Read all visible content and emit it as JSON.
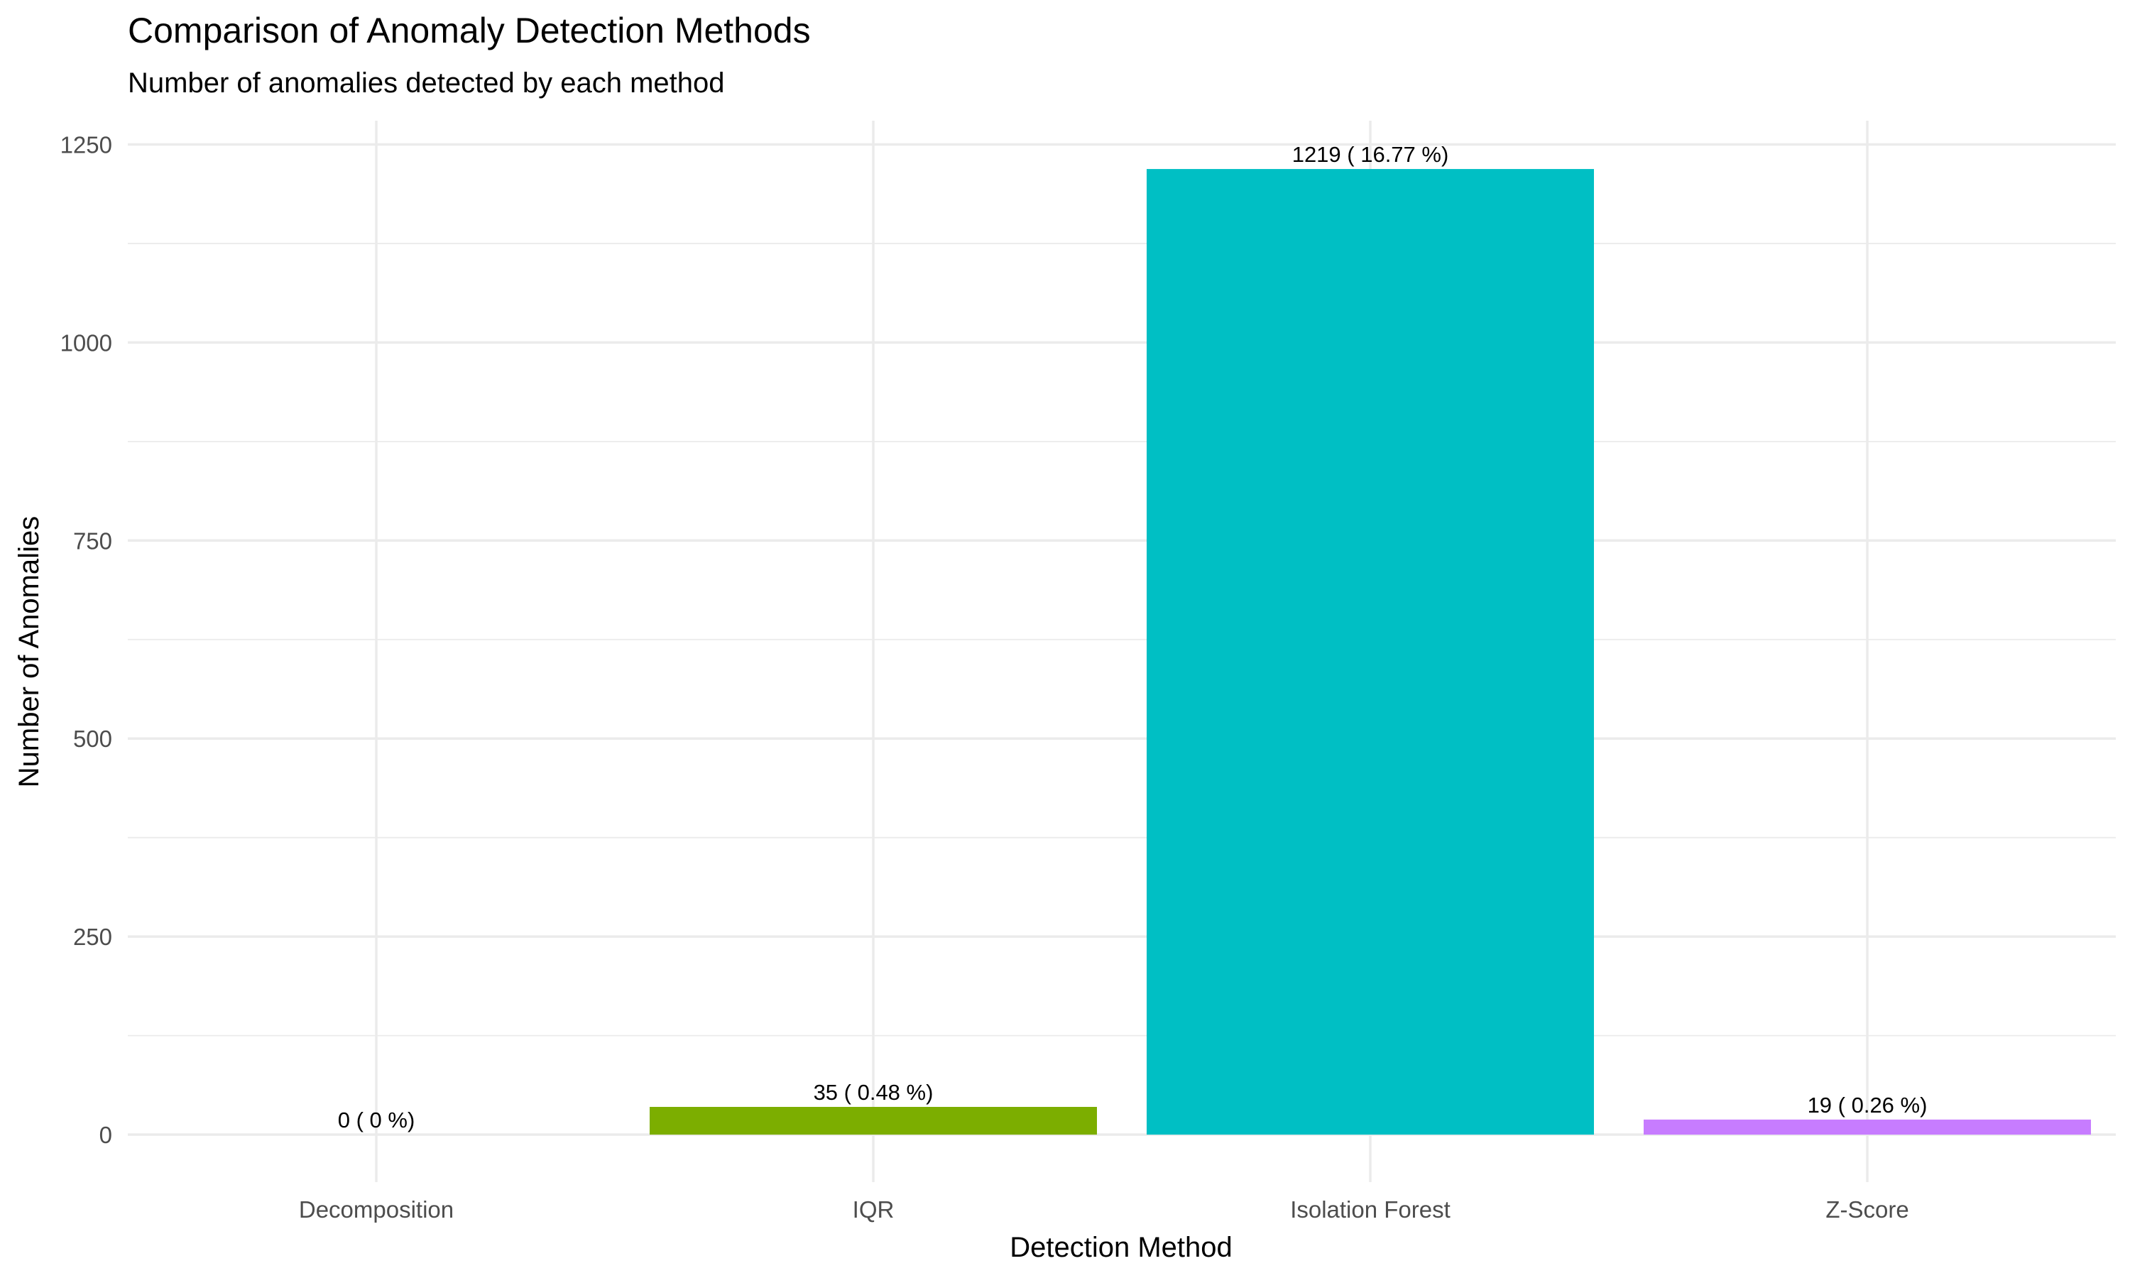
{
  "chart_data": {
    "type": "bar",
    "title": "Comparison of Anomaly Detection Methods",
    "subtitle": "Number of anomalies detected by each method",
    "xlabel": "Detection Method",
    "ylabel": "Number of Anomalies",
    "categories": [
      "Decomposition",
      "IQR",
      "Isolation Forest",
      "Z-Score"
    ],
    "values": [
      0,
      35,
      1219,
      19
    ],
    "data_labels": [
      "0 ( 0 %)",
      "35 ( 0.48 %)",
      "1219 ( 16.77 %)",
      "19 ( 0.26 %)"
    ],
    "colors": [
      "#F8766D",
      "#7CAE00",
      "#00BFC4",
      "#C77CFF"
    ],
    "yticks": [
      0,
      250,
      500,
      750,
      1000,
      1250
    ],
    "ylim": [
      -60,
      1280
    ],
    "grid": true,
    "legend": "none"
  }
}
